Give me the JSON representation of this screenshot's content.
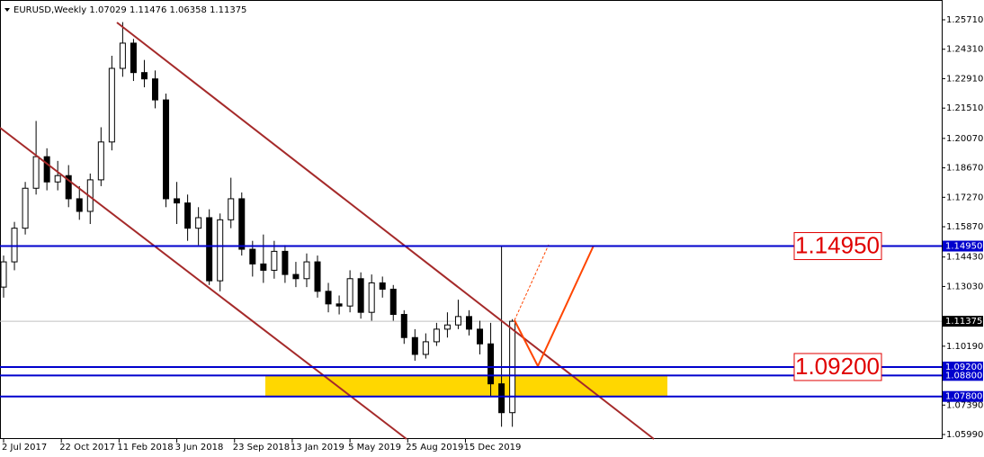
{
  "chart_data": {
    "type": "candlestick",
    "title": "EURUSD,Weekly",
    "x": [
      0,
      3,
      6,
      9,
      12,
      15,
      18,
      21,
      24,
      27,
      30,
      33,
      36,
      39,
      42,
      45,
      48,
      51,
      54,
      57,
      60,
      63,
      66,
      69,
      72,
      75,
      78,
      81,
      84,
      87,
      90,
      93,
      96,
      99,
      102,
      105,
      108,
      111,
      114,
      117,
      120,
      123,
      126,
      129,
      132,
      135,
      138,
      141
    ],
    "open": [
      1.13,
      1.142,
      1.158,
      1.177,
      1.192,
      1.18,
      1.183,
      1.172,
      1.166,
      1.181,
      1.199,
      1.234,
      1.246,
      1.232,
      1.229,
      1.219,
      1.172,
      1.17,
      1.158,
      1.163,
      1.133,
      1.162,
      1.172,
      1.148,
      1.141,
      1.138,
      1.147,
      1.136,
      1.134,
      1.142,
      1.128,
      1.122,
      1.121,
      1.134,
      1.118,
      1.132,
      1.129,
      1.117,
      1.106,
      1.098,
      1.104,
      1.11,
      1.112,
      1.116,
      1.11,
      1.103,
      1.084,
      1.07029
    ],
    "high": [
      1.145,
      1.161,
      1.18,
      1.209,
      1.196,
      1.19,
      1.188,
      1.178,
      1.184,
      1.206,
      1.24,
      1.256,
      1.248,
      1.238,
      1.233,
      1.222,
      1.18,
      1.174,
      1.168,
      1.167,
      1.165,
      1.182,
      1.175,
      1.152,
      1.155,
      1.152,
      1.15,
      1.142,
      1.146,
      1.145,
      1.132,
      1.126,
      1.138,
      1.137,
      1.136,
      1.135,
      1.131,
      1.119,
      1.11,
      1.108,
      1.113,
      1.118,
      1.124,
      1.119,
      1.114,
      1.113,
      1.1495,
      1.11476
    ],
    "low": [
      1.125,
      1.138,
      1.155,
      1.174,
      1.176,
      1.176,
      1.168,
      1.162,
      1.16,
      1.178,
      1.195,
      1.23,
      1.228,
      1.225,
      1.215,
      1.168,
      1.16,
      1.152,
      1.15,
      1.131,
      1.128,
      1.158,
      1.145,
      1.135,
      1.132,
      1.134,
      1.132,
      1.13,
      1.13,
      1.125,
      1.118,
      1.117,
      1.118,
      1.115,
      1.114,
      1.125,
      1.114,
      1.103,
      1.095,
      1.096,
      1.102,
      1.106,
      1.11,
      1.107,
      1.098,
      1.078,
      1.0636,
      1.06358
    ],
    "close": [
      1.142,
      1.158,
      1.177,
      1.192,
      1.18,
      1.183,
      1.172,
      1.166,
      1.181,
      1.199,
      1.234,
      1.246,
      1.232,
      1.229,
      1.219,
      1.172,
      1.17,
      1.158,
      1.163,
      1.133,
      1.162,
      1.172,
      1.148,
      1.141,
      1.138,
      1.147,
      1.136,
      1.134,
      1.142,
      1.128,
      1.122,
      1.121,
      1.134,
      1.118,
      1.132,
      1.129,
      1.117,
      1.106,
      1.098,
      1.104,
      1.11,
      1.112,
      1.116,
      1.11,
      1.103,
      1.084,
      1.07029,
      1.11375
    ],
    "xlim": [
      -1,
      260
    ],
    "ylim": [
      1.05691,
      1.26651
    ],
    "xticks": [
      {
        "value": 0,
        "label": "2 Jul 2017"
      },
      {
        "value": 16,
        "label": "22 Oct 2017"
      },
      {
        "value": 32,
        "label": "11 Feb 2018"
      },
      {
        "value": 48,
        "label": "3 Jun 2018"
      },
      {
        "value": 64,
        "label": "23 Sep 2018"
      },
      {
        "value": 80,
        "label": "13 Jan 2019"
      },
      {
        "value": 96,
        "label": "5 May 2019"
      },
      {
        "value": 112,
        "label": "25 Aug 2019"
      },
      {
        "value": 128,
        "label": "15 Dec 2019"
      }
    ],
    "yticks": [
      {
        "value": 1.2571,
        "label": "1.25710"
      },
      {
        "value": 1.2431,
        "label": "1.24310"
      },
      {
        "value": 1.2291,
        "label": "1.22910"
      },
      {
        "value": 1.2151,
        "label": "1.21510"
      },
      {
        "value": 1.2007,
        "label": "1.20070"
      },
      {
        "value": 1.1867,
        "label": "1.18670"
      },
      {
        "value": 1.1727,
        "label": "1.17270"
      },
      {
        "value": 1.1587,
        "label": "1.15870"
      },
      {
        "value": 1.1443,
        "label": "1.14430"
      },
      {
        "value": 1.1303,
        "label": "1.13030"
      },
      {
        "value": 1.1019,
        "label": "1.10190"
      },
      {
        "value": 1.0739,
        "label": "1.07390"
      },
      {
        "value": 1.0599,
        "label": "1.05990"
      }
    ],
    "levels": [
      {
        "value": 1.1495,
        "label": "1.14950"
      },
      {
        "value": 1.092,
        "label": "1.09200"
      },
      {
        "value": 1.088,
        "label": "1.08800"
      },
      {
        "value": 1.078,
        "label": "1.07800"
      }
    ],
    "level_color": "#0000cd",
    "zone_color": "#ffd700"
  }
}
